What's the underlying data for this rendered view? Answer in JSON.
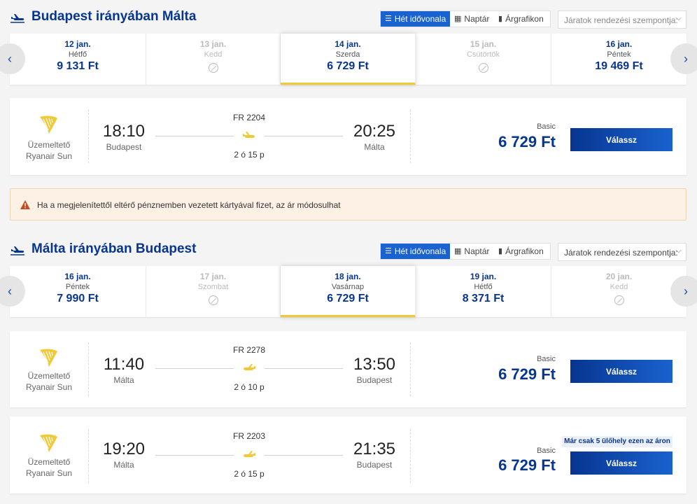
{
  "outbound": {
    "title": "Budapest irányában Málta",
    "view_tabs": [
      {
        "label": "Hét idővonala",
        "icon": "list-icon",
        "active": true
      },
      {
        "label": "Naptár",
        "icon": "calendar-icon",
        "active": false
      },
      {
        "label": "Árgrafikon",
        "icon": "bar-chart-icon",
        "active": false
      }
    ],
    "sort_placeholder": "Járatok rendezési szempontja:",
    "dates": [
      {
        "date": "12 jan.",
        "day": "Hétfő",
        "price": "9 131 Ft",
        "available": true,
        "selected": false
      },
      {
        "date": "13 jan.",
        "day": "Kedd",
        "price": "",
        "available": false,
        "selected": false
      },
      {
        "date": "14 jan.",
        "day": "Szerda",
        "price": "6 729 Ft",
        "available": true,
        "selected": true
      },
      {
        "date": "15 jan.",
        "day": "Csütörtök",
        "price": "",
        "available": false,
        "selected": false
      },
      {
        "date": "16 jan.",
        "day": "Péntek",
        "price": "19 469 Ft",
        "available": true,
        "selected": false
      }
    ],
    "flights": [
      {
        "operator_label": "Üzemeltető",
        "operator": "Ryanair Sun",
        "flight_no": "FR 2204",
        "dep_time": "18:10",
        "dep_city": "Budapest",
        "arr_time": "20:25",
        "arr_city": "Málta",
        "duration": "2 ó 15 p",
        "fare_type": "Basic",
        "price": "6 729 Ft",
        "button": "Válassz",
        "badge": ""
      }
    ]
  },
  "warning": {
    "text": "Ha a megjelenítettől eltérő pénznemben vezetett kártyával fizet, az ár módosulhat"
  },
  "inbound": {
    "title": "Málta irányában Budapest",
    "view_tabs": [
      {
        "label": "Hét idővonala",
        "icon": "list-icon",
        "active": true
      },
      {
        "label": "Naptár",
        "icon": "calendar-icon",
        "active": false
      },
      {
        "label": "Árgrafikon",
        "icon": "bar-chart-icon",
        "active": false
      }
    ],
    "sort_placeholder": "Járatok rendezési szempontja:",
    "dates": [
      {
        "date": "16 jan.",
        "day": "Péntek",
        "price": "7 990 Ft",
        "available": true,
        "selected": false
      },
      {
        "date": "17 jan.",
        "day": "Szombat",
        "price": "",
        "available": false,
        "selected": false
      },
      {
        "date": "18 jan.",
        "day": "Vasárnap",
        "price": "6 729 Ft",
        "available": true,
        "selected": true
      },
      {
        "date": "19 jan.",
        "day": "Hétfő",
        "price": "8 371 Ft",
        "available": true,
        "selected": false
      },
      {
        "date": "20 jan.",
        "day": "Kedd",
        "price": "",
        "available": false,
        "selected": false
      }
    ],
    "flights": [
      {
        "operator_label": "Üzemeltető",
        "operator": "Ryanair Sun",
        "flight_no": "FR 2278",
        "dep_time": "11:40",
        "dep_city": "Málta",
        "arr_time": "13:50",
        "arr_city": "Budapest",
        "duration": "2 ó 10 p",
        "fare_type": "Basic",
        "price": "6 729 Ft",
        "button": "Válassz",
        "badge": ""
      },
      {
        "operator_label": "Üzemeltető",
        "operator": "Ryanair Sun",
        "flight_no": "FR 2203",
        "dep_time": "19:20",
        "dep_city": "Málta",
        "arr_time": "21:35",
        "arr_city": "Budapest",
        "duration": "2 ó 15 p",
        "fare_type": "Basic",
        "price": "6 729 Ft",
        "button": "Válassz",
        "badge": "Már csak 5 ülőhely ezen az áron"
      }
    ]
  },
  "colors": {
    "brand_blue": "#073590",
    "accent_blue": "#1a62cf",
    "yellow": "#f1c933"
  }
}
